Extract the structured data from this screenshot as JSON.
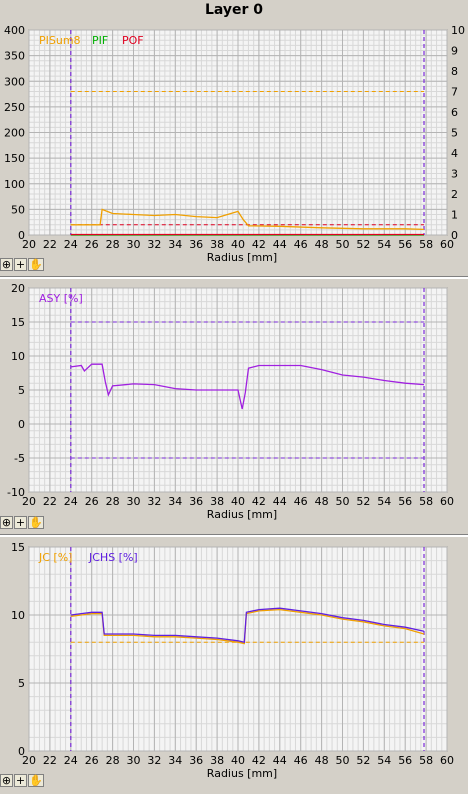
{
  "title": "Layer 0",
  "colors": {
    "pisum": "#f0a000",
    "pif": "#00b000",
    "pof": "#e00020",
    "asy": "#a020e0",
    "jc": "#f0a000",
    "jchs": "#6020e0",
    "marker": "#7a2ad8",
    "grid": "#c8c8c8",
    "plot_bg": "#f4f4f4"
  },
  "icons": [
    "zoom-icon",
    "crosshair-icon",
    "hand-icon"
  ],
  "tool_glyphs": [
    "⊕",
    "+",
    "✋"
  ],
  "chart_data": [
    {
      "type": "line",
      "xlabel": "Radius [mm]",
      "xlim": [
        20,
        60
      ],
      "ylim": [
        0,
        400
      ],
      "y2lim": [
        0,
        10
      ],
      "x_ticks": [
        20,
        22,
        24,
        26,
        28,
        30,
        32,
        34,
        36,
        38,
        40,
        42,
        44,
        46,
        48,
        50,
        52,
        54,
        56,
        58,
        60
      ],
      "y_ticks": [
        0,
        50,
        100,
        150,
        200,
        250,
        300,
        350,
        400
      ],
      "y2_ticks": [
        0,
        1,
        2,
        3,
        4,
        5,
        6,
        7,
        8,
        9,
        10
      ],
      "legend": [
        "PISum8",
        "PIF",
        "POF"
      ],
      "markers_x": [
        24,
        57.8
      ],
      "threshold_lines": [
        {
          "axis": "y2",
          "value": 7,
          "series": "PISum8"
        },
        {
          "axis": "y2",
          "value": 0.5,
          "series": "POF"
        }
      ],
      "series": [
        {
          "name": "PISum8",
          "axis": "y",
          "x": [
            24,
            26.8,
            27,
            28,
            30,
            32,
            34,
            36,
            38,
            39,
            40,
            40.5,
            41,
            44,
            48,
            52,
            56,
            57.8
          ],
          "y": [
            20,
            20,
            50,
            42,
            40,
            38,
            40,
            36,
            34,
            40,
            46,
            30,
            18,
            17,
            14,
            12,
            12,
            11
          ]
        },
        {
          "name": "PIF",
          "axis": "y",
          "x": [
            24,
            57.8
          ],
          "y": [
            0,
            0
          ]
        },
        {
          "name": "POF",
          "axis": "y",
          "x": [
            24,
            57.8
          ],
          "y": [
            1,
            1
          ]
        }
      ]
    },
    {
      "type": "line",
      "xlabel": "Radius [mm]",
      "xlim": [
        20,
        60
      ],
      "ylim": [
        -10,
        20
      ],
      "x_ticks": [
        20,
        22,
        24,
        26,
        28,
        30,
        32,
        34,
        36,
        38,
        40,
        42,
        44,
        46,
        48,
        50,
        52,
        54,
        56,
        58,
        60
      ],
      "y_ticks": [
        -10,
        -5,
        0,
        5,
        10,
        15,
        20
      ],
      "legend": [
        "ASY [%]"
      ],
      "markers_x": [
        24,
        57.8
      ],
      "threshold_lines": [
        {
          "axis": "y",
          "value": 15
        },
        {
          "axis": "y",
          "value": -5
        }
      ],
      "series": [
        {
          "name": "ASY [%]",
          "axis": "y",
          "x": [
            24,
            25,
            25.3,
            26,
            27,
            27.3,
            27.6,
            28,
            30,
            32,
            34,
            36,
            38,
            40,
            40.4,
            40.7,
            41,
            42,
            44,
            46,
            48,
            50,
            52,
            54,
            56,
            57.8
          ],
          "y": [
            8.4,
            8.6,
            7.8,
            8.8,
            8.8,
            6.2,
            4.3,
            5.6,
            5.9,
            5.8,
            5.2,
            5.0,
            5.0,
            5.0,
            2.2,
            4.6,
            8.2,
            8.6,
            8.6,
            8.6,
            8.0,
            7.2,
            6.9,
            6.4,
            6.0,
            5.8
          ]
        }
      ]
    },
    {
      "type": "line",
      "xlabel": "Radius [mm]",
      "xlim": [
        20,
        60
      ],
      "ylim": [
        0,
        15
      ],
      "x_ticks": [
        20,
        22,
        24,
        26,
        28,
        30,
        32,
        34,
        36,
        38,
        40,
        42,
        44,
        46,
        48,
        50,
        52,
        54,
        56,
        58,
        60
      ],
      "y_ticks": [
        0,
        5,
        10,
        15
      ],
      "legend": [
        "JC [%]",
        "JCHS [%]"
      ],
      "markers_x": [
        24,
        57.8
      ],
      "threshold_lines": [
        {
          "axis": "y",
          "value": 8,
          "series": "JC [%]"
        }
      ],
      "series": [
        {
          "name": "JC [%]",
          "axis": "y",
          "x": [
            24,
            25,
            26,
            27,
            27.2,
            28,
            30,
            32,
            34,
            36,
            38,
            40,
            40.6,
            40.8,
            42,
            44,
            46,
            48,
            50,
            52,
            54,
            56,
            57.8
          ],
          "y": [
            9.9,
            10.0,
            10.1,
            10.1,
            8.5,
            8.5,
            8.5,
            8.4,
            8.4,
            8.3,
            8.2,
            8.0,
            7.9,
            10.1,
            10.3,
            10.4,
            10.2,
            10.0,
            9.7,
            9.5,
            9.2,
            9.0,
            8.6
          ]
        },
        {
          "name": "JCHS [%]",
          "axis": "y",
          "x": [
            24,
            25,
            26,
            27,
            27.2,
            28,
            30,
            32,
            34,
            36,
            38,
            40,
            40.6,
            40.8,
            42,
            44,
            46,
            48,
            50,
            52,
            54,
            56,
            57.8
          ],
          "y": [
            10.0,
            10.1,
            10.2,
            10.2,
            8.6,
            8.6,
            8.6,
            8.5,
            8.5,
            8.4,
            8.3,
            8.1,
            8.0,
            10.2,
            10.4,
            10.5,
            10.3,
            10.1,
            9.8,
            9.6,
            9.3,
            9.1,
            8.8
          ]
        }
      ]
    }
  ]
}
